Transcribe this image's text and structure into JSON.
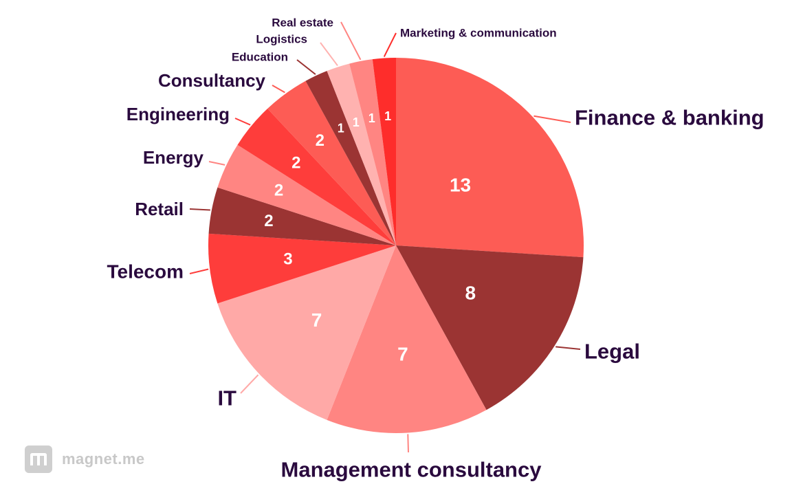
{
  "chart_data": {
    "type": "pie",
    "title": "",
    "slices": [
      {
        "label": "Finance & banking",
        "value": 13,
        "color": "#fd5c55"
      },
      {
        "label": "Legal",
        "value": 8,
        "color": "#9b3433"
      },
      {
        "label": "Management consultancy",
        "value": 7,
        "color": "#ff8582"
      },
      {
        "label": "IT",
        "value": 7,
        "color": "#ffa9a7"
      },
      {
        "label": "Telecom",
        "value": 3,
        "color": "#fe3d3b"
      },
      {
        "label": "Retail",
        "value": 2,
        "color": "#9b3433"
      },
      {
        "label": "Energy",
        "value": 2,
        "color": "#ff8582"
      },
      {
        "label": "Engineering",
        "value": 2,
        "color": "#fe3d3b"
      },
      {
        "label": "Consultancy",
        "value": 2,
        "color": "#fd5c55"
      },
      {
        "label": "Education",
        "value": 1,
        "color": "#9b3433"
      },
      {
        "label": "Logistics",
        "value": 1,
        "color": "#ffb2b0"
      },
      {
        "label": "Real estate",
        "value": 1,
        "color": "#ff8582"
      },
      {
        "label": "Marketing & communication",
        "value": 1,
        "color": "#fe2d2b"
      }
    ]
  },
  "watermark": {
    "text": "magnet.me",
    "icon": "magnet-me-logo-icon"
  }
}
